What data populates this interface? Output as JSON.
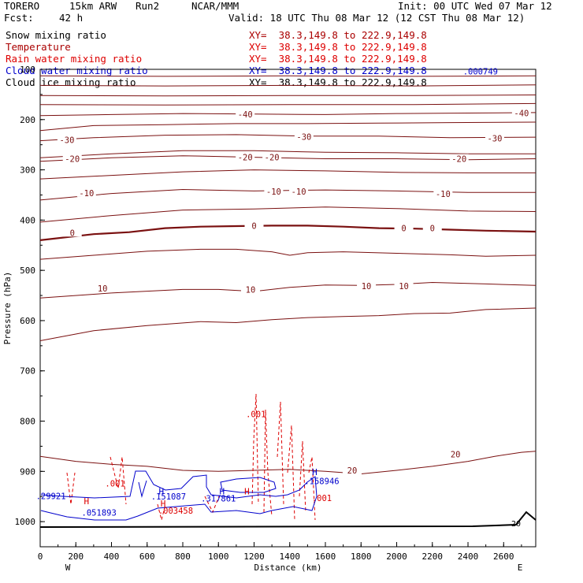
{
  "header": {
    "model": "TORERO",
    "resolution": "15km ARW",
    "run": "Run2",
    "org": "NCAR/MMM",
    "init": "Init: 00 UTC Wed 07 Mar 12",
    "fcst_label": "Fcst:",
    "fcst_value": "42 h",
    "valid": "Valid: 18 UTC Thu 08 Mar 12 (12 CST Thu 08 Mar 12)"
  },
  "fields": [
    {
      "name": "Snow mixing ratio",
      "xy": "XY=  38.3,149.8 to 222.9,149.8",
      "color": "#000000"
    },
    {
      "name": "Temperature",
      "xy": "XY=  38.3,149.8 to 222.9,149.8",
      "color": "#aa0000"
    },
    {
      "name": "Rain water mixing ratio",
      "xy": "XY=  38.3,149.8 to 222.9,149.8",
      "color": "#dd0000"
    },
    {
      "name": "Cloud water mixing ratio",
      "xy": "XY=  38.3,149.8 to 222.9,149.8",
      "color": "#0000cc"
    },
    {
      "name": "Cloud ice mixing ratio",
      "xy": "XY=  38.3,149.8 to 222.9,149.8",
      "color": "#000000"
    }
  ],
  "chart_data": {
    "type": "line",
    "xlabel": "Distance (km)",
    "ylabel": "Pressure (hPa)",
    "xlim": [
      0,
      2780
    ],
    "ylim": [
      1050,
      100
    ],
    "x_ticks": [
      0,
      200,
      400,
      600,
      800,
      1000,
      1200,
      1400,
      1600,
      1800,
      2000,
      2200,
      2400,
      2600
    ],
    "y_ticks": [
      100,
      200,
      300,
      400,
      500,
      600,
      700,
      800,
      900,
      1000
    ],
    "x_end_labels": {
      "left": "W",
      "right": "E"
    },
    "series": [
      {
        "name": "Temperature",
        "color": "#7a1010",
        "contours": [
          {
            "level": -60,
            "points": [
              [
                0,
                113
              ],
              [
                700,
                114
              ],
              [
                1400,
                113
              ],
              [
                2100,
                114
              ],
              [
                2780,
                113
              ]
            ]
          },
          {
            "level": -55,
            "points": [
              [
                0,
                132
              ],
              [
                700,
                133
              ],
              [
                1400,
                132
              ],
              [
                2100,
                133
              ],
              [
                2780,
                131
              ]
            ]
          },
          {
            "level": -50,
            "points": [
              [
                0,
                152
              ],
              [
                700,
                153
              ],
              [
                1400,
                152
              ],
              [
                2100,
                152
              ],
              [
                2780,
                151
              ]
            ]
          },
          {
            "level": -45,
            "points": [
              [
                0,
                170
              ],
              [
                700,
                171
              ],
              [
                1400,
                170
              ],
              [
                2100,
                170
              ],
              [
                2780,
                168
              ]
            ]
          },
          {
            "level": -40,
            "label": "-40",
            "label_points": [
              [
                1150,
                189
              ],
              [
                2700,
                187
              ]
            ],
            "points": [
              [
                0,
                192
              ],
              [
                400,
                190
              ],
              [
                800,
                188
              ],
              [
                1200,
                189
              ],
              [
                1600,
                190
              ],
              [
                2000,
                188
              ],
              [
                2400,
                187
              ],
              [
                2780,
                186
              ]
            ]
          },
          {
            "level": -35,
            "points": [
              [
                0,
                222
              ],
              [
                300,
                212
              ],
              [
                700,
                210
              ],
              [
                1100,
                208
              ],
              [
                1500,
                208
              ],
              [
                1900,
                207
              ],
              [
                2300,
                206
              ],
              [
                2780,
                205
              ]
            ]
          },
          {
            "level": -30,
            "label": "-30",
            "label_points": [
              [
                150,
                240
              ],
              [
                1480,
                234
              ],
              [
                2550,
                237
              ]
            ],
            "points": [
              [
                0,
                242
              ],
              [
                300,
                236
              ],
              [
                700,
                231
              ],
              [
                1100,
                230
              ],
              [
                1500,
                233
              ],
              [
                1900,
                233
              ],
              [
                2300,
                236
              ],
              [
                2780,
                235
              ]
            ]
          },
          {
            "level": -25,
            "points": [
              [
                0,
                276
              ],
              [
                400,
                268
              ],
              [
                800,
                262
              ],
              [
                1200,
                262
              ],
              [
                1600,
                265
              ],
              [
                2000,
                266
              ],
              [
                2400,
                268
              ],
              [
                2780,
                268
              ]
            ]
          },
          {
            "level": -20,
            "label": "-20",
            "label_points": [
              [
                180,
                278
              ],
              [
                1150,
                275
              ],
              [
                1300,
                275
              ],
              [
                2350,
                278
              ]
            ],
            "points": [
              [
                0,
                283
              ],
              [
                400,
                276
              ],
              [
                800,
                272
              ],
              [
                1200,
                275
              ],
              [
                1600,
                278
              ],
              [
                2000,
                278
              ],
              [
                2400,
                280
              ],
              [
                2780,
                278
              ]
            ]
          },
          {
            "level": -15,
            "points": [
              [
                0,
                318
              ],
              [
                400,
                311
              ],
              [
                800,
                304
              ],
              [
                1200,
                300
              ],
              [
                1600,
                302
              ],
              [
                2000,
                305
              ],
              [
                2400,
                306
              ],
              [
                2780,
                306
              ]
            ]
          },
          {
            "level": -10,
            "label": "-10",
            "label_points": [
              [
                260,
                346
              ],
              [
                1310,
                343
              ],
              [
                1450,
                343
              ],
              [
                2260,
                348
              ]
            ],
            "points": [
              [
                0,
                360
              ],
              [
                400,
                347
              ],
              [
                800,
                339
              ],
              [
                1200,
                342
              ],
              [
                1600,
                340
              ],
              [
                2000,
                342
              ],
              [
                2400,
                345
              ],
              [
                2780,
                345
              ]
            ]
          },
          {
            "level": -5,
            "points": [
              [
                0,
                404
              ],
              [
                400,
                391
              ],
              [
                800,
                380
              ],
              [
                1200,
                378
              ],
              [
                1600,
                374
              ],
              [
                2000,
                377
              ],
              [
                2400,
                382
              ],
              [
                2780,
                383
              ]
            ]
          },
          {
            "level": 0,
            "label": "0",
            "label_points": [
              [
                180,
                425
              ],
              [
                1200,
                411
              ],
              [
                2040,
                416
              ],
              [
                2200,
                416
              ]
            ],
            "points": [
              [
                0,
                440
              ],
              [
                300,
                428
              ],
              [
                500,
                424
              ],
              [
                700,
                416
              ],
              [
                900,
                413
              ],
              [
                1100,
                412
              ],
              [
                1300,
                411
              ],
              [
                1500,
                411
              ],
              [
                1700,
                413
              ],
              [
                1900,
                416
              ],
              [
                2100,
                417
              ],
              [
                2300,
                419
              ],
              [
                2500,
                421
              ],
              [
                2780,
                423
              ]
            ],
            "bold": true
          },
          {
            "level": 5,
            "points": [
              [
                0,
                478
              ],
              [
                300,
                470
              ],
              [
                600,
                462
              ],
              [
                900,
                458
              ],
              [
                1100,
                458
              ],
              [
                1300,
                463
              ],
              [
                1400,
                470
              ],
              [
                1500,
                465
              ],
              [
                1700,
                463
              ],
              [
                2000,
                466
              ],
              [
                2300,
                469
              ],
              [
                2500,
                472
              ],
              [
                2780,
                470
              ]
            ]
          },
          {
            "level": 10,
            "label": "10",
            "label_points": [
              [
                350,
                536
              ],
              [
                1180,
                538
              ],
              [
                1830,
                531
              ],
              [
                2040,
                531
              ]
            ],
            "points": [
              [
                0,
                555
              ],
              [
                400,
                545
              ],
              [
                800,
                538
              ],
              [
                1000,
                538
              ],
              [
                1200,
                542
              ],
              [
                1400,
                534
              ],
              [
                1600,
                529
              ],
              [
                1800,
                530
              ],
              [
                2000,
                528
              ],
              [
                2200,
                524
              ],
              [
                2500,
                527
              ],
              [
                2780,
                530
              ]
            ]
          },
          {
            "level": 15,
            "points": [
              [
                0,
                640
              ],
              [
                300,
                620
              ],
              [
                600,
                610
              ],
              [
                900,
                602
              ],
              [
                1100,
                604
              ],
              [
                1300,
                598
              ],
              [
                1500,
                594
              ],
              [
                1700,
                592
              ],
              [
                1900,
                590
              ],
              [
                2100,
                586
              ],
              [
                2300,
                585
              ],
              [
                2500,
                578
              ],
              [
                2780,
                575
              ]
            ]
          },
          {
            "level": 20,
            "label": "20",
            "label_points": [
              [
                1750,
                898
              ],
              [
                2330,
                866
              ]
            ],
            "points": [
              [
                0,
                870
              ],
              [
                200,
                880
              ],
              [
                400,
                886
              ],
              [
                600,
                890
              ],
              [
                800,
                898
              ],
              [
                1000,
                900
              ],
              [
                1200,
                898
              ],
              [
                1400,
                896
              ],
              [
                1600,
                900
              ],
              [
                1800,
                905
              ],
              [
                2000,
                898
              ],
              [
                2200,
                890
              ],
              [
                2400,
                880
              ],
              [
                2550,
                870
              ],
              [
                2700,
                862
              ],
              [
                2780,
                860
              ]
            ]
          }
        ]
      },
      {
        "name": "Rain water mixing ratio",
        "color": "#dd0000",
        "labels": [
          {
            "text": ".001",
            "x": 1210,
            "y": 792
          },
          {
            "text": ".001",
            "x": 420,
            "y": 930
          },
          {
            "text": ".003458",
            "x": 760,
            "y": 984
          },
          {
            "text": ".001",
            "x": 1580,
            "y": 959
          }
        ]
      },
      {
        "name": "Cloud water mixing ratio",
        "color": "#0000cc",
        "labels": [
          {
            "text": ".151087",
            "x": 720,
            "y": 956
          },
          {
            "text": ".317861",
            "x": 1000,
            "y": 960
          },
          {
            "text": ".158946",
            "x": 1580,
            "y": 925
          },
          {
            "text": ".29921",
            "x": 60,
            "y": 955
          },
          {
            "text": ".051893",
            "x": 330,
            "y": 988
          },
          {
            "text": ".000749",
            "x": 2470,
            "y": 110
          }
        ]
      }
    ],
    "markers": [
      {
        "text": "H",
        "x": 1540,
        "y": 907,
        "color": "#0000cc"
      },
      {
        "text": "H",
        "x": 680,
        "y": 946,
        "color": "#0000cc"
      },
      {
        "text": "H",
        "x": 1020,
        "y": 946,
        "color": "#0000cc"
      },
      {
        "text": "H",
        "x": 1160,
        "y": 946,
        "color": "#dd0000"
      },
      {
        "text": "H",
        "x": 260,
        "y": 965,
        "color": "#dd0000"
      },
      {
        "text": "H",
        "x": 690,
        "y": 970,
        "color": "#dd0000"
      }
    ],
    "surface_label": "20"
  }
}
